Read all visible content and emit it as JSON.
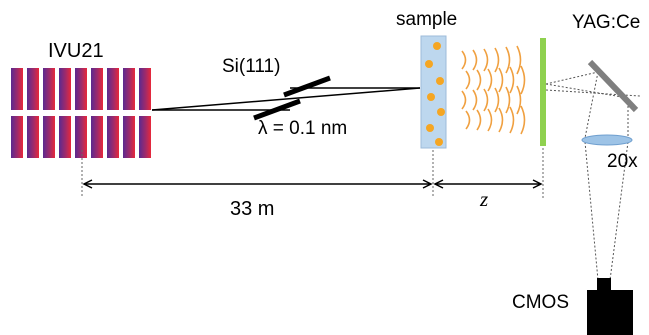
{
  "labels": {
    "undulator": "IVU21",
    "mono": "Si(111)",
    "wavelength": "λ = 0.1 nm",
    "sample": "sample",
    "scintillator": "YAG:Ce",
    "objective": "20x",
    "camera": "CMOS",
    "distance1": "33 m",
    "distance2": "z"
  },
  "colors": {
    "magnet_dark": "#6a2a8c",
    "magnet_red": "#e0283c",
    "sample_fill": "#bdd7ee",
    "particle": "#f5a623",
    "wavefront": "#f0a040",
    "scintillator": "#8fd14f",
    "mirror": "#7f7f7f",
    "lens": "#9dc3e6",
    "camera": "#000000"
  },
  "icons": {
    "undulator": "undulator-magnet-array-icon",
    "crystal": "monochromator-crystal-icon",
    "camera": "camera-icon"
  }
}
